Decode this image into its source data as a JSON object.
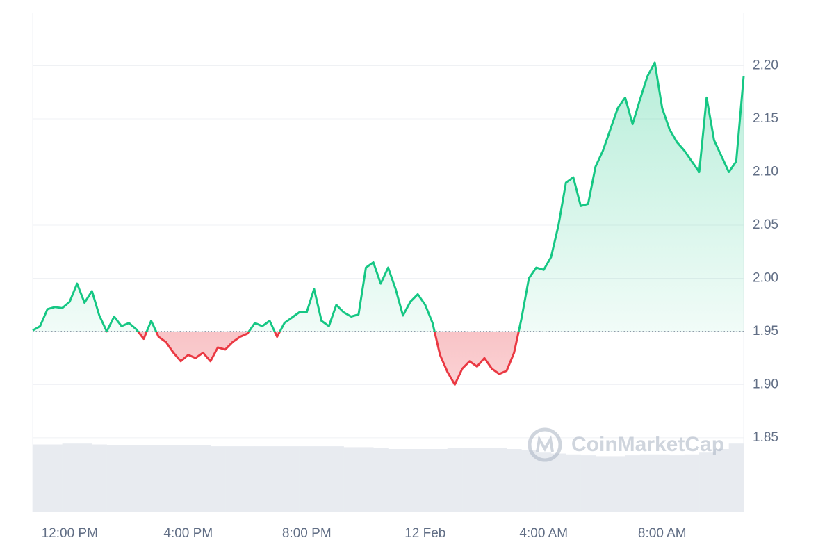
{
  "chart_data": {
    "type": "line",
    "x": [
      -1.25,
      -1,
      -0.75,
      -0.5,
      -0.25,
      0,
      0.25,
      0.5,
      0.75,
      1,
      1.25,
      1.5,
      1.75,
      2,
      2.25,
      2.5,
      2.75,
      3,
      3.25,
      3.5,
      3.75,
      4,
      4.25,
      4.5,
      4.75,
      5,
      5.25,
      5.5,
      5.75,
      6,
      6.25,
      6.5,
      6.75,
      7,
      7.25,
      7.5,
      7.75,
      8,
      8.25,
      8.5,
      8.75,
      9,
      9.25,
      9.5,
      9.75,
      10,
      10.25,
      10.5,
      10.75,
      11,
      11.25,
      11.5,
      11.75,
      12,
      12.25,
      12.5,
      12.75,
      13,
      13.25,
      13.5,
      13.75,
      14,
      14.25,
      14.5,
      14.75,
      15,
      15.25,
      15.5,
      15.75,
      16,
      16.25,
      16.5,
      16.75,
      17,
      17.25,
      17.5,
      17.75,
      18,
      18.25,
      18.5,
      18.75,
      19,
      19.25,
      19.5,
      19.75,
      20,
      20.25,
      20.5,
      20.75,
      21,
      21.25,
      21.5,
      21.75,
      22,
      22.25,
      22.5,
      22.75
    ],
    "values": [
      1.951,
      1.955,
      1.971,
      1.973,
      1.972,
      1.978,
      1.995,
      1.977,
      1.988,
      1.965,
      1.95,
      1.964,
      1.955,
      1.958,
      1.952,
      1.943,
      1.96,
      1.945,
      1.94,
      1.93,
      1.922,
      1.928,
      1.925,
      1.93,
      1.922,
      1.935,
      1.933,
      1.94,
      1.945,
      1.948,
      1.958,
      1.955,
      1.96,
      1.945,
      1.958,
      1.963,
      1.968,
      1.968,
      1.99,
      1.96,
      1.955,
      1.975,
      1.968,
      1.964,
      1.966,
      2.01,
      2.015,
      1.995,
      2.01,
      1.99,
      1.965,
      1.978,
      1.985,
      1.975,
      1.958,
      1.928,
      1.912,
      1.9,
      1.915,
      1.922,
      1.917,
      1.925,
      1.915,
      1.91,
      1.913,
      1.93,
      1.962,
      2.0,
      2.01,
      2.008,
      2.02,
      2.05,
      2.09,
      2.095,
      2.068,
      2.07,
      2.105,
      2.12,
      2.14,
      2.16,
      2.17,
      2.145,
      2.168,
      2.19,
      2.203,
      2.16,
      2.14,
      2.128,
      2.12,
      2.11,
      2.1,
      2.17,
      2.13,
      2.115,
      2.1,
      2.11,
      2.19
    ],
    "baseline": 1.95,
    "up_color": "#16c784",
    "down_color": "#ea3943",
    "xlim": [
      -1.25,
      22.75
    ],
    "xticks": [
      {
        "value": 0,
        "label": "12:00 PM"
      },
      {
        "value": 4,
        "label": "4:00 PM"
      },
      {
        "value": 8,
        "label": "8:00 PM"
      },
      {
        "value": 12,
        "label": "12 Feb"
      },
      {
        "value": 16,
        "label": "4:00 AM"
      },
      {
        "value": 20,
        "label": "8:00 AM"
      }
    ],
    "ylim": [
      1.78,
      2.25
    ],
    "yticks": [
      {
        "value": 1.85,
        "label": "1.85"
      },
      {
        "value": 1.9,
        "label": "1.90"
      },
      {
        "value": 1.95,
        "label": "1.95"
      },
      {
        "value": 2.0,
        "label": "2.00"
      },
      {
        "value": 2.05,
        "label": "2.05"
      },
      {
        "value": 2.1,
        "label": "2.10"
      },
      {
        "value": 2.15,
        "label": "2.15"
      },
      {
        "value": 2.2,
        "label": "2.20"
      }
    ],
    "grid": true,
    "volume": {
      "color": "#e8ebf0",
      "ylim": [
        0,
        100
      ],
      "values": [
        75,
        75,
        76,
        76,
        75,
        74,
        74,
        74,
        74,
        74,
        74,
        74,
        73,
        73,
        73,
        73,
        73,
        73,
        73,
        73,
        73,
        72,
        72,
        71,
        70,
        70,
        70,
        70,
        71,
        71,
        71,
        71,
        70,
        69,
        66,
        65,
        64,
        63,
        62,
        62,
        63,
        64,
        64,
        63,
        64,
        66,
        70,
        76
      ]
    },
    "watermark": "CoinMarketCap"
  }
}
